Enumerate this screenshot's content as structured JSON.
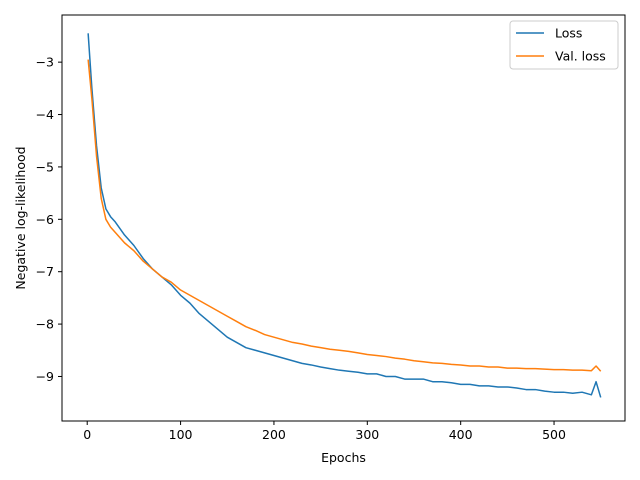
{
  "chart_data": {
    "type": "line",
    "title": "",
    "xlabel": "Epochs",
    "ylabel": "Negative log-likelihood",
    "xlim": [
      -27,
      576
    ],
    "ylim": [
      -9.85,
      -2.1
    ],
    "xticks": [
      0,
      100,
      200,
      300,
      400,
      500
    ],
    "yticks": [
      -3,
      -4,
      -5,
      -6,
      -7,
      -8,
      -9
    ],
    "grid": false,
    "legend_position": "top-right",
    "series": [
      {
        "name": "Loss",
        "color": "#1f77b4",
        "x": [
          1,
          5,
          10,
          15,
          20,
          25,
          30,
          40,
          50,
          60,
          70,
          80,
          90,
          100,
          110,
          120,
          130,
          140,
          150,
          160,
          170,
          180,
          190,
          200,
          210,
          220,
          230,
          240,
          250,
          260,
          270,
          280,
          290,
          300,
          310,
          320,
          330,
          340,
          350,
          360,
          370,
          380,
          390,
          400,
          410,
          420,
          430,
          440,
          450,
          460,
          470,
          480,
          490,
          500,
          510,
          520,
          530,
          540,
          545,
          550
        ],
        "y": [
          -2.45,
          -3.5,
          -4.6,
          -5.4,
          -5.8,
          -5.95,
          -6.05,
          -6.3,
          -6.5,
          -6.75,
          -6.95,
          -7.1,
          -7.25,
          -7.45,
          -7.6,
          -7.8,
          -7.95,
          -8.1,
          -8.25,
          -8.35,
          -8.45,
          -8.5,
          -8.55,
          -8.6,
          -8.65,
          -8.7,
          -8.75,
          -8.78,
          -8.82,
          -8.85,
          -8.88,
          -8.9,
          -8.92,
          -8.95,
          -8.95,
          -9.0,
          -9.0,
          -9.05,
          -9.05,
          -9.05,
          -9.1,
          -9.1,
          -9.12,
          -9.15,
          -9.15,
          -9.18,
          -9.18,
          -9.2,
          -9.2,
          -9.22,
          -9.25,
          -9.25,
          -9.28,
          -9.3,
          -9.3,
          -9.32,
          -9.3,
          -9.35,
          -9.1,
          -9.4
        ]
      },
      {
        "name": "Val. loss",
        "color": "#ff7f0e",
        "x": [
          1,
          5,
          10,
          15,
          20,
          25,
          30,
          40,
          50,
          60,
          70,
          80,
          90,
          100,
          110,
          120,
          130,
          140,
          150,
          160,
          170,
          180,
          190,
          200,
          210,
          220,
          230,
          240,
          250,
          260,
          270,
          280,
          290,
          300,
          310,
          320,
          330,
          340,
          350,
          360,
          370,
          380,
          390,
          400,
          410,
          420,
          430,
          440,
          450,
          460,
          470,
          480,
          490,
          500,
          510,
          520,
          530,
          540,
          545,
          550
        ],
        "y": [
          -2.95,
          -3.7,
          -4.8,
          -5.6,
          -6.0,
          -6.15,
          -6.25,
          -6.45,
          -6.6,
          -6.8,
          -6.95,
          -7.1,
          -7.2,
          -7.35,
          -7.45,
          -7.55,
          -7.65,
          -7.75,
          -7.85,
          -7.95,
          -8.05,
          -8.12,
          -8.2,
          -8.25,
          -8.3,
          -8.35,
          -8.38,
          -8.42,
          -8.45,
          -8.48,
          -8.5,
          -8.52,
          -8.55,
          -8.58,
          -8.6,
          -8.62,
          -8.65,
          -8.67,
          -8.7,
          -8.72,
          -8.74,
          -8.75,
          -8.77,
          -8.78,
          -8.8,
          -8.8,
          -8.82,
          -8.82,
          -8.84,
          -8.84,
          -8.85,
          -8.85,
          -8.86,
          -8.87,
          -8.87,
          -8.88,
          -8.88,
          -8.89,
          -8.8,
          -8.9
        ]
      }
    ]
  }
}
